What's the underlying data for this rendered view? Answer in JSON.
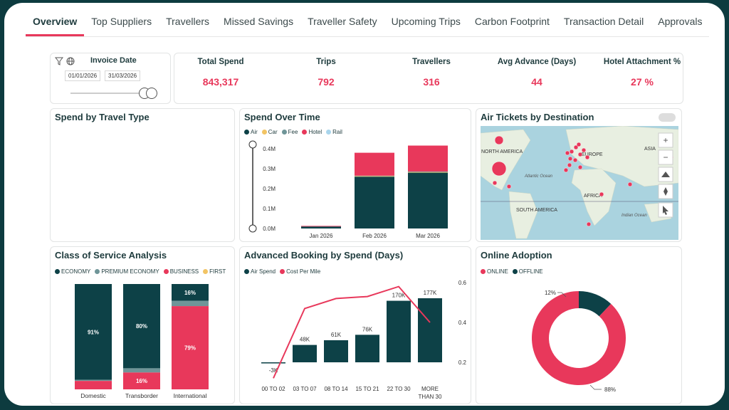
{
  "tabs": [
    "Overview",
    "Top Suppliers",
    "Travellers",
    "Missed Savings",
    "Traveller Safety",
    "Upcoming Trips",
    "Carbon Footprint",
    "Transaction Detail",
    "Approvals"
  ],
  "filter": {
    "title": "Invoice Date",
    "start": "01/01/2026",
    "end": "31/03/2026"
  },
  "kpis": [
    {
      "label": "Total Spend",
      "value": "843,317"
    },
    {
      "label": "Trips",
      "value": "792"
    },
    {
      "label": "Travellers",
      "value": "316"
    },
    {
      "label": "Avg Advance (Days)",
      "value": "44"
    },
    {
      "label": "Hotel Attachment %",
      "value": "27 %"
    }
  ],
  "panels": {
    "spend_travel_type": "Spend by Travel Type",
    "spend_over_time": "Spend Over Time",
    "air_tickets": "Air Tickets by Destination",
    "class_of_service": "Class of Service Analysis",
    "advanced_booking": "Advanced Booking by Spend (Days)",
    "online_adoption": "Online Adoption"
  },
  "map": {
    "labels": [
      "NORTH AMERICA",
      "EUROPE",
      "ASIA",
      "Atlantic Ocean",
      "AFRICA",
      "SOUTH AMERICA",
      "Indian Ocean"
    ],
    "controls": [
      "+",
      "−"
    ]
  },
  "colors": {
    "air": "#0d4147",
    "car": "#f2c464",
    "fee": "#6f9598",
    "hotel": "#e8385b",
    "rail": "#a9d5ec",
    "accent": "#e8385b"
  },
  "chart_data": [
    {
      "type": "bar",
      "title": "Spend Over Time",
      "categories": [
        "Jan 2026",
        "Feb 2026",
        "Mar 2026"
      ],
      "legend": [
        "Air",
        "Car",
        "Fee",
        "Hotel",
        "Rail"
      ],
      "series": [
        {
          "name": "Air",
          "values": [
            0.01,
            0.26,
            0.28
          ]
        },
        {
          "name": "Car",
          "values": [
            0,
            0.003,
            0.003
          ]
        },
        {
          "name": "Fee",
          "values": [
            0,
            0.002,
            0.003
          ]
        },
        {
          "name": "Hotel",
          "values": [
            0.003,
            0.115,
            0.13
          ]
        },
        {
          "name": "Rail",
          "values": [
            0,
            0,
            0
          ]
        }
      ],
      "yticks": [
        "0.0M",
        "0.1M",
        "0.2M",
        "0.3M",
        "0.4M"
      ],
      "ylim": [
        0,
        0.4
      ]
    },
    {
      "type": "bar",
      "title": "Class of Service Analysis",
      "categories": [
        "Domestic",
        "Transborder",
        "International"
      ],
      "legend": [
        "ECONOMY",
        "PREMIUM ECONOMY",
        "BUSINESS",
        "FIRST"
      ],
      "series": [
        {
          "name": "ECONOMY",
          "values": [
            91,
            80,
            16
          ],
          "labels": [
            "91%",
            "80%",
            "16%"
          ]
        },
        {
          "name": "PREMIUM ECONOMY",
          "values": [
            1,
            4,
            5
          ],
          "labels": [
            "",
            "",
            ""
          ]
        },
        {
          "name": "BUSINESS",
          "values": [
            8,
            16,
            79
          ],
          "labels": [
            "",
            "16%",
            "79%"
          ]
        },
        {
          "name": "FIRST",
          "values": [
            0,
            0,
            0
          ],
          "labels": [
            "",
            "",
            ""
          ]
        }
      ],
      "ylim": [
        0,
        100
      ]
    },
    {
      "type": "bar",
      "title": "Advanced Booking by Spend (Days)",
      "categories": [
        "00 TO 02",
        "03 TO 07",
        "08 TO 14",
        "15 TO 21",
        "22 TO 30",
        "MORE THAN 30"
      ],
      "legend": [
        "Air Spend",
        "Cost Per Mile"
      ],
      "series": [
        {
          "name": "Air Spend",
          "values": [
            -3,
            48,
            61,
            76,
            170,
            177
          ],
          "labels": [
            "-3K",
            "48K",
            "61K",
            "76K",
            "170K",
            "177K"
          ]
        },
        {
          "name": "Cost Per Mile",
          "values": [
            0.12,
            0.47,
            0.52,
            0.53,
            0.58,
            0.4
          ]
        }
      ],
      "y2ticks": [
        "0.2",
        "0.4",
        "0.6"
      ],
      "y2lim": [
        0.1,
        0.6
      ]
    },
    {
      "type": "pie",
      "title": "Online Adoption",
      "legend": [
        "ONLINE",
        "OFFLINE"
      ],
      "values": [
        88,
        12
      ],
      "labels": [
        "88%",
        "12%"
      ]
    }
  ]
}
